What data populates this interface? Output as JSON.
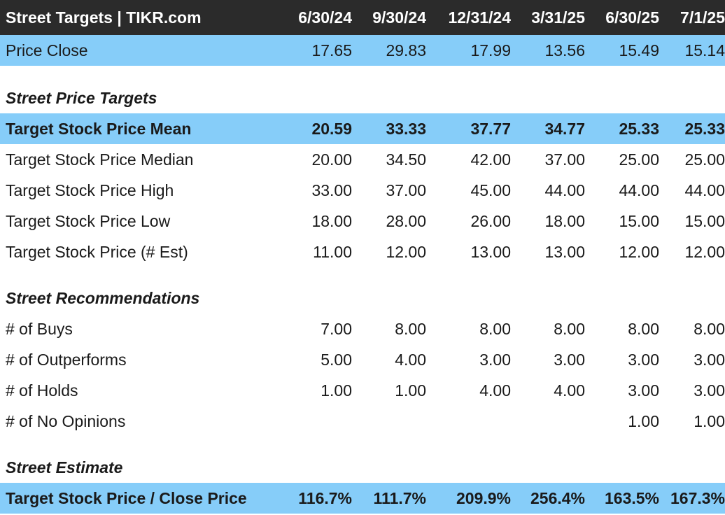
{
  "header": {
    "title": "Street Targets | TIKR.com",
    "dates": [
      "6/30/24",
      "9/30/24",
      "12/31/24",
      "3/31/25",
      "6/30/25",
      "7/1/25"
    ]
  },
  "price_close": {
    "label": "Price Close",
    "values": [
      "17.65",
      "29.83",
      "17.99",
      "13.56",
      "15.49",
      "15.14"
    ]
  },
  "sections": {
    "targets": "Street Price Targets",
    "recommendations": "Street Recommendations",
    "estimate": "Street Estimate"
  },
  "target_rows": [
    {
      "label": "Target Stock Price Mean",
      "values": [
        "20.59",
        "33.33",
        "37.77",
        "34.77",
        "25.33",
        "25.33"
      ]
    },
    {
      "label": "Target Stock Price Median",
      "values": [
        "20.00",
        "34.50",
        "42.00",
        "37.00",
        "25.00",
        "25.00"
      ]
    },
    {
      "label": "Target Stock Price High",
      "values": [
        "33.00",
        "37.00",
        "45.00",
        "44.00",
        "44.00",
        "44.00"
      ]
    },
    {
      "label": "Target Stock Price Low",
      "values": [
        "18.00",
        "28.00",
        "26.00",
        "18.00",
        "15.00",
        "15.00"
      ]
    },
    {
      "label": "Target Stock Price (# Est)",
      "values": [
        "11.00",
        "12.00",
        "13.00",
        "13.00",
        "12.00",
        "12.00"
      ]
    }
  ],
  "rec_rows": [
    {
      "label": "# of Buys",
      "values": [
        "7.00",
        "8.00",
        "8.00",
        "8.00",
        "8.00",
        "8.00"
      ]
    },
    {
      "label": "# of Outperforms",
      "values": [
        "5.00",
        "4.00",
        "3.00",
        "3.00",
        "3.00",
        "3.00"
      ]
    },
    {
      "label": "# of Holds",
      "values": [
        "1.00",
        "1.00",
        "4.00",
        "4.00",
        "3.00",
        "3.00"
      ]
    },
    {
      "label": "# of No Opinions",
      "values": [
        "",
        "",
        "",
        "",
        "1.00",
        "1.00"
      ]
    }
  ],
  "estimate_row": {
    "label": "Target Stock Price / Close Price",
    "values": [
      "116.7%",
      "111.7%",
      "209.9%",
      "256.4%",
      "163.5%",
      "167.3%"
    ]
  },
  "colors": {
    "header_bg": "#2b2b2b",
    "highlight_bg": "#86cdf9",
    "text": "#1a1a1a"
  }
}
